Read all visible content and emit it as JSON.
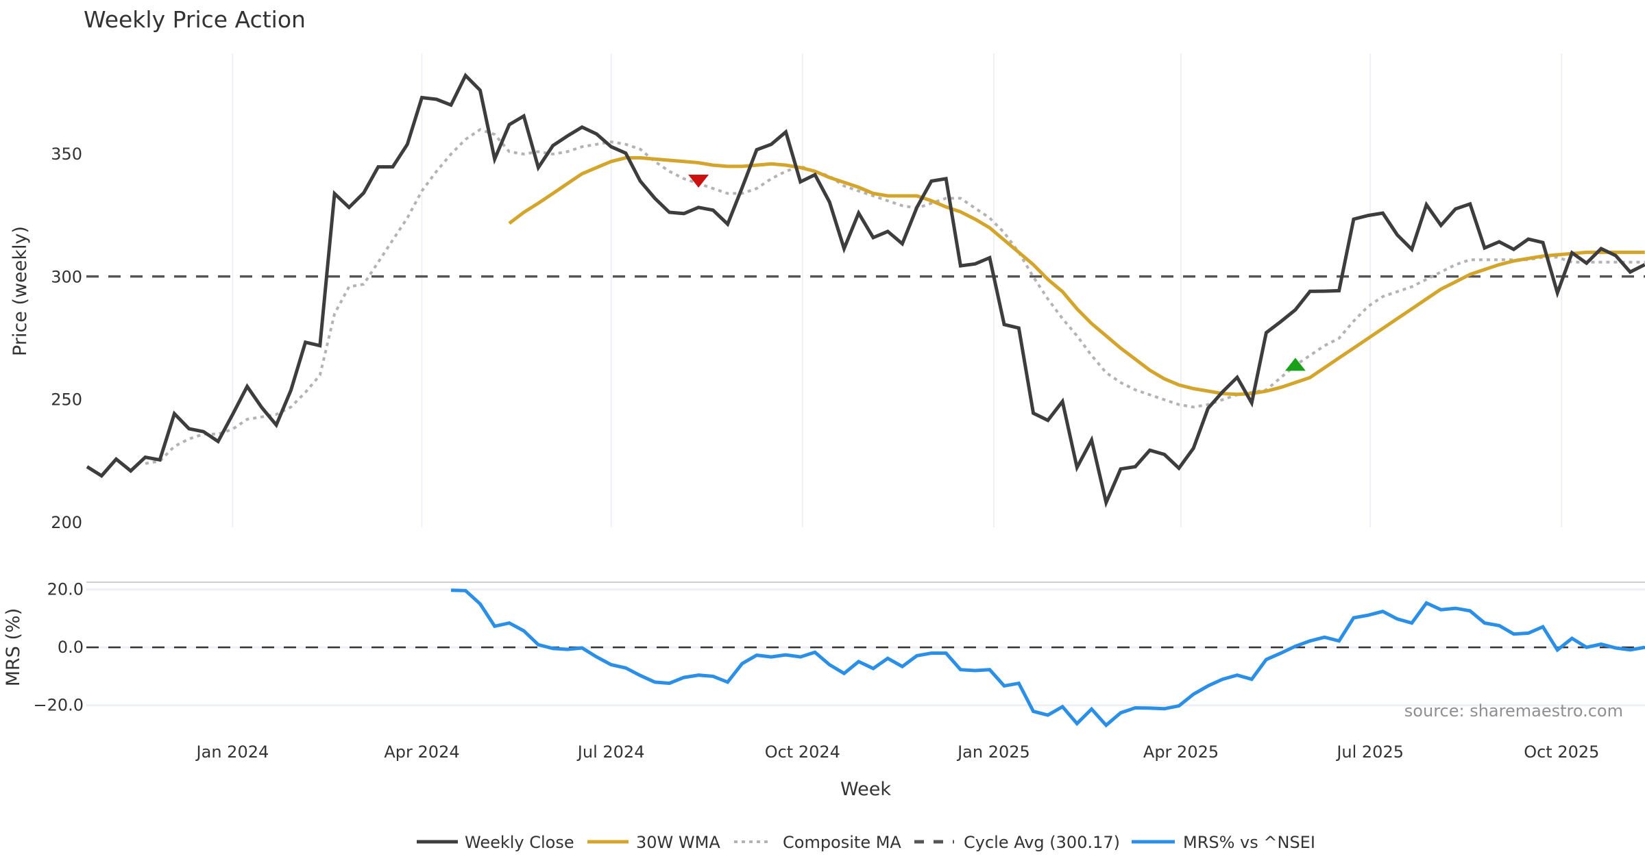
{
  "chart_data": {
    "type": "line",
    "title": "Weekly Price Action",
    "x_interval_days": 7,
    "x_start": "2023-10-23",
    "xlabel": "Week",
    "x_ticks": [
      {
        "date": "2024-01-01",
        "label": "Jan 2024"
      },
      {
        "date": "2024-04-01",
        "label": "Apr 2024"
      },
      {
        "date": "2024-07-01",
        "label": "Jul 2024"
      },
      {
        "date": "2024-10-01",
        "label": "Oct 2024"
      },
      {
        "date": "2025-01-01",
        "label": "Jan 2025"
      },
      {
        "date": "2025-04-01",
        "label": "Apr 2025"
      },
      {
        "date": "2025-07-01",
        "label": "Jul 2025"
      },
      {
        "date": "2025-10-01",
        "label": "Oct 2025"
      }
    ],
    "price_panel": {
      "ylabel": "Price (weekly)",
      "ylim": [
        198,
        391
      ],
      "y_ticks": [
        {
          "value": 200,
          "label": "200"
        },
        {
          "value": 250,
          "label": "250"
        },
        {
          "value": 300,
          "label": "300"
        },
        {
          "value": 350,
          "label": "350"
        }
      ],
      "series": [
        {
          "name": "Weekly Close",
          "color": "#3d3d3d",
          "style": "solid",
          "start_index": 0,
          "values": [
            222.7,
            219,
            225.8,
            221,
            226.6,
            225.5,
            244.3,
            238.2,
            237,
            233,
            244,
            255.4,
            246.8,
            239.7,
            253.8,
            273.4,
            272,
            333.9,
            328.3,
            334.2,
            344.8,
            344.8,
            354,
            373,
            372.3,
            370,
            382,
            376,
            348,
            362,
            365.5,
            344.5,
            353.5,
            357.4,
            361,
            358.2,
            353,
            350.4,
            339,
            332,
            326.3,
            325.8,
            328.3,
            327.2,
            321.5,
            336.4,
            351.8,
            354,
            359,
            338.7,
            341.6,
            330.5,
            311.5,
            326,
            316,
            318.5,
            313.5,
            328.3,
            339,
            340,
            304.5,
            305.3,
            307.8,
            280.6,
            279.2,
            244.5,
            241.6,
            249.3,
            222.4,
            233.6,
            208.1,
            221.8,
            222.7,
            229.4,
            227.7,
            222.1,
            230.2,
            246.5,
            253.2,
            259.1,
            248.7,
            277.3,
            281.8,
            286.6,
            294.1,
            294.2,
            294.4,
            323.5,
            325,
            326,
            317.1,
            311.2,
            329.4,
            321,
            327.7,
            329.7,
            311.8,
            314.3,
            311.2,
            315.4,
            314,
            293.5,
            309.8,
            305.6,
            311.5,
            308.7,
            302,
            305
          ]
        },
        {
          "name": "30W WMA",
          "color": "#d4a52c",
          "style": "solid",
          "start_index": 29,
          "values": [
            321.8,
            326.3,
            330,
            334,
            338,
            342,
            344.5,
            347,
            348.5,
            348.5,
            348,
            347.5,
            347,
            346.5,
            345.5,
            345,
            345,
            345.5,
            346,
            345.5,
            344.5,
            343,
            340.5,
            338.5,
            336.5,
            334,
            333,
            333,
            333,
            331,
            328.5,
            326.5,
            323.5,
            320,
            315,
            310,
            305,
            299,
            294,
            287,
            281,
            276,
            271,
            266.5,
            262,
            258.5,
            256,
            254.5,
            253.5,
            252.5,
            252.2,
            252.5,
            253.5,
            255,
            257,
            259,
            263,
            267,
            271,
            275,
            279,
            283,
            287,
            291,
            295,
            298,
            301,
            303,
            305,
            306.5,
            307.5,
            308.5,
            309,
            309.5,
            310,
            310,
            310,
            310,
            310
          ]
        },
        {
          "name": "Composite MA",
          "color": "#b3b3b3",
          "style": "dotted",
          "start_index": 4,
          "values": [
            224,
            225,
            231,
            234,
            236,
            236,
            238,
            242,
            243,
            244,
            247,
            253,
            260,
            285,
            296,
            297,
            306,
            315,
            324,
            335,
            343,
            350,
            356,
            360,
            358,
            351,
            350,
            351,
            350,
            351,
            353,
            354,
            355,
            354,
            352,
            347,
            343,
            340,
            338,
            336,
            334,
            334,
            336,
            340,
            343,
            345,
            343,
            341,
            337,
            335,
            333,
            331,
            329,
            328,
            330,
            332,
            332,
            328,
            324,
            318,
            310,
            300,
            291,
            283,
            276,
            268,
            261,
            257,
            254,
            252,
            250,
            248,
            247,
            248,
            250,
            252,
            253,
            254,
            259,
            264,
            268,
            272,
            275,
            282,
            288,
            292,
            294,
            296,
            299,
            302,
            305,
            307,
            307,
            307,
            307,
            307,
            308,
            308,
            306,
            306,
            306,
            306,
            306,
            306
          ]
        },
        {
          "name": "Cycle Avg (300.17)",
          "color": "#555555",
          "style": "dashed",
          "value": 300.17
        }
      ],
      "markers": [
        {
          "type": "sell",
          "shape": "triangle-down",
          "index": 42,
          "value": 339,
          "color": "#cc1111"
        },
        {
          "type": "buy",
          "shape": "triangle-up",
          "index": 83,
          "value": 264.4,
          "color": "#1aa01a"
        }
      ]
    },
    "mrs_panel": {
      "ylabel": "MRS (%)",
      "ylim": [
        -30,
        22.5
      ],
      "y_ticks": [
        {
          "value": 20,
          "label": "20.0"
        },
        {
          "value": 0,
          "label": "0.0"
        },
        {
          "value": -20,
          "label": "−20.0"
        }
      ],
      "zero_line": 0,
      "series": [
        {
          "name": "MRS% vs ^NSEI",
          "color": "#2b8fe6",
          "style": "solid",
          "start_index": 25,
          "values": [
            19.7,
            19.6,
            15,
            7.3,
            8.4,
            5.7,
            0.9,
            -0.4,
            -0.7,
            -0.2,
            -3.3,
            -6,
            -7.1,
            -9.7,
            -12,
            -12.4,
            -10.4,
            -9.6,
            -10,
            -12,
            -5.6,
            -2.7,
            -3.3,
            -2.6,
            -3.3,
            -1.7,
            -6,
            -9,
            -4.9,
            -7.3,
            -3.8,
            -6.6,
            -2.9,
            -2,
            -2,
            -7.7,
            -8,
            -7.7,
            -13.3,
            -12.4,
            -22.1,
            -23.4,
            -20.5,
            -26.3,
            -21.3,
            -26.9,
            -22.6,
            -20.9,
            -21,
            -21.2,
            -20.2,
            -16.2,
            -13.3,
            -11,
            -9.6,
            -11,
            -4.2,
            -2,
            0.4,
            2.2,
            3.5,
            2.2,
            10.2,
            11.1,
            12.4,
            9.8,
            8.4,
            15.3,
            13,
            13.5,
            12.6,
            8.4,
            7.5,
            4.6,
            4.9,
            7.1,
            -0.9,
            3.1,
            0,
            1.1,
            -0.2,
            -0.9,
            0
          ]
        }
      ]
    },
    "legend": {
      "placement": "bottom-center",
      "entries": [
        {
          "label": "Weekly Close",
          "color": "#3d3d3d",
          "style": "solid"
        },
        {
          "label": "30W WMA",
          "color": "#d4a52c",
          "style": "solid"
        },
        {
          "label": "Composite MA",
          "color": "#b3b3b3",
          "style": "dotted"
        },
        {
          "label": "Cycle Avg (300.17)",
          "color": "#555555",
          "style": "dashed"
        },
        {
          "label": "MRS% vs ^NSEI",
          "color": "#2b8fe6",
          "style": "solid"
        }
      ]
    },
    "annotation": "source: sharemaestro.com"
  }
}
